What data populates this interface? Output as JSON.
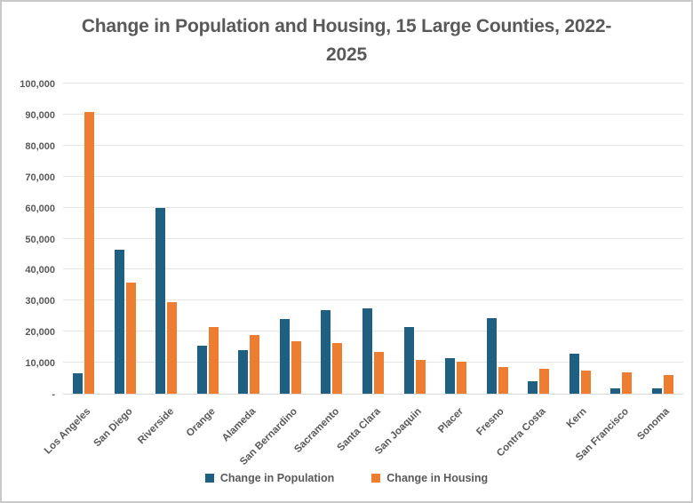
{
  "chart_data": {
    "type": "bar",
    "title": "Change in Population and Housing, 15 Large Counties, 2022-2025",
    "categories": [
      "Los Angeles",
      "San Diego",
      "Riverside",
      "Orange",
      "Alameda",
      "San Bernardino",
      "Sacramento",
      "Santa Clara",
      "San Joaquin",
      "Placer",
      "Fresno",
      "Contra Costa",
      "Kern",
      "San Francisco",
      "Sonoma"
    ],
    "series": [
      {
        "name": "Change in Population",
        "color": "#1f6082",
        "values": [
          6500,
          46500,
          60000,
          15500,
          14000,
          24000,
          27000,
          27500,
          21500,
          11500,
          24500,
          4000,
          13000,
          1800,
          1800
        ]
      },
      {
        "name": "Change in Housing",
        "color": "#ed7d31",
        "values": [
          91000,
          36000,
          29500,
          21500,
          19000,
          17000,
          16500,
          13500,
          11000,
          10300,
          8500,
          8000,
          7500,
          6800,
          6000
        ]
      }
    ],
    "ylim": [
      0,
      100000
    ],
    "ytick_step": 10000,
    "ytick_labels": [
      "-",
      "10,000",
      "20,000",
      "30,000",
      "40,000",
      "50,000",
      "60,000",
      "70,000",
      "80,000",
      "90,000",
      "100,000"
    ],
    "xlabel": "",
    "ylabel": "",
    "grid": true,
    "legend_position": "bottom"
  },
  "colors": {
    "text": "#595959",
    "gridline": "#e5e5e5",
    "axis_line": "#d9d9d9",
    "frame_border": "#c9c9c9",
    "background": "#ffffff"
  }
}
